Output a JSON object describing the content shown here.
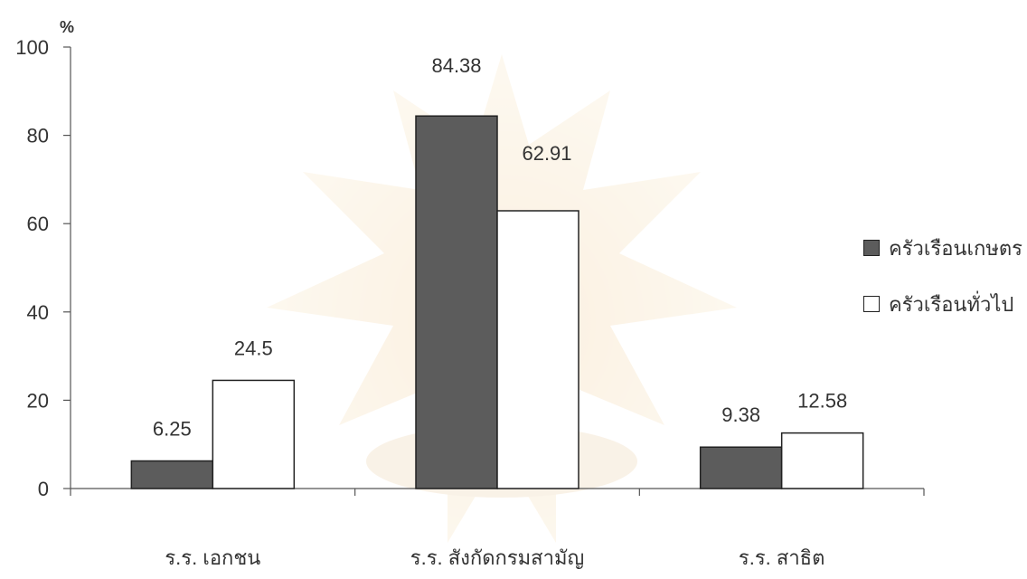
{
  "chart_data": {
    "type": "bar",
    "ylabel": "%",
    "ylim": [
      0,
      100
    ],
    "yticks": [
      0,
      20,
      40,
      60,
      80,
      100
    ],
    "categories": [
      "ร.ร. เอกชน",
      "ร.ร. สังกัดกรมสามัญ",
      "ร.ร. สาธิต"
    ],
    "series": [
      {
        "name": "ครัวเรือนเกษตร",
        "values": [
          6.25,
          84.38,
          9.38
        ],
        "color": "#5c5c5c"
      },
      {
        "name": "ครัวเรือนทั่วไป",
        "values": [
          24.5,
          62.91,
          12.58
        ],
        "color": "#ffffff"
      }
    ],
    "data_labels": [
      [
        "6.25",
        "84.38",
        "9.38"
      ],
      [
        "24.5",
        "62.91",
        "12.58"
      ]
    ],
    "legend_position": "right",
    "grid": false
  }
}
